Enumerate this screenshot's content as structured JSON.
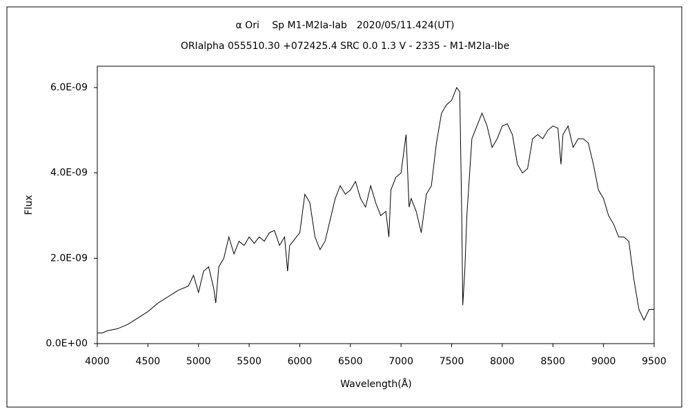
{
  "chart_data": {
    "type": "line",
    "title": "α Ori　 Sp M1-M2Ia-Iab　2020/05/11.424(UT)",
    "subtitle": "ORIalpha 055510.30 +072425.4 SRC 0.0 1.3 V - 2335 - M1-M2Ia-Ibe",
    "xlabel": "Wavelength(Å)",
    "ylabel": "Flux",
    "xlim": [
      4000,
      9500
    ],
    "xticks": [
      4000,
      4500,
      5000,
      5500,
      6000,
      6500,
      7000,
      7500,
      8000,
      8500,
      9000,
      9500
    ],
    "ylim": [
      0,
      6.5e-09
    ],
    "yticks": [
      {
        "value": 0,
        "label": "0.0E+00"
      },
      {
        "value": 2e-09,
        "label": "2.0E-09"
      },
      {
        "value": 4e-09,
        "label": "4.0E-09"
      },
      {
        "value": 6e-09,
        "label": "6.0E-09"
      }
    ],
    "grid": false,
    "color": "#000000",
    "x": [
      4000,
      4050,
      4100,
      4200,
      4300,
      4400,
      4500,
      4600,
      4700,
      4800,
      4900,
      4950,
      5000,
      5050,
      5100,
      5150,
      5170,
      5200,
      5250,
      5300,
      5350,
      5400,
      5450,
      5500,
      5550,
      5600,
      5650,
      5700,
      5750,
      5800,
      5850,
      5880,
      5900,
      6000,
      6050,
      6100,
      6150,
      6200,
      6250,
      6300,
      6350,
      6400,
      6450,
      6500,
      6550,
      6600,
      6650,
      6700,
      6750,
      6800,
      6850,
      6880,
      6900,
      6950,
      7000,
      7050,
      7080,
      7100,
      7150,
      7200,
      7250,
      7300,
      7350,
      7400,
      7450,
      7500,
      7550,
      7580,
      7600,
      7610,
      7630,
      7650,
      7700,
      7750,
      7800,
      7850,
      7900,
      7950,
      8000,
      8050,
      8100,
      8150,
      8200,
      8250,
      8300,
      8350,
      8400,
      8450,
      8500,
      8550,
      8580,
      8600,
      8650,
      8700,
      8750,
      8800,
      8850,
      8900,
      8950,
      9000,
      9050,
      9100,
      9150,
      9200,
      9250,
      9300,
      9350,
      9400,
      9450,
      9500
    ],
    "values": [
      2.5e-10,
      2.5e-10,
      3e-10,
      3.5e-10,
      4.5e-10,
      6e-10,
      7.5e-10,
      9.5e-10,
      1.1e-09,
      1.25e-09,
      1.35e-09,
      1.6e-09,
      1.2e-09,
      1.7e-09,
      1.8e-09,
      1.3e-09,
      9.5e-10,
      1.8e-09,
      2e-09,
      2.5e-09,
      2.1e-09,
      2.4e-09,
      2.3e-09,
      2.5e-09,
      2.35e-09,
      2.5e-09,
      2.4e-09,
      2.6e-09,
      2.65e-09,
      2.3e-09,
      2.5e-09,
      1.7e-09,
      2.3e-09,
      2.6e-09,
      3.5e-09,
      3.3e-09,
      2.5e-09,
      2.2e-09,
      2.4e-09,
      2.9e-09,
      3.4e-09,
      3.7e-09,
      3.5e-09,
      3.6e-09,
      3.8e-09,
      3.4e-09,
      3.2e-09,
      3.7e-09,
      3.3e-09,
      3e-09,
      3.1e-09,
      2.5e-09,
      3.6e-09,
      3.9e-09,
      4e-09,
      4.9e-09,
      3.2e-09,
      3.4e-09,
      3.1e-09,
      2.6e-09,
      3.5e-09,
      3.7e-09,
      4.7e-09,
      5.4e-09,
      5.6e-09,
      5.7e-09,
      6e-09,
      5.9e-09,
      3e-09,
      9e-10,
      1.7e-09,
      3e-09,
      4.8e-09,
      5.1e-09,
      5.4e-09,
      5.1e-09,
      4.6e-09,
      4.8e-09,
      5.1e-09,
      5.15e-09,
      4.9e-09,
      4.2e-09,
      4e-09,
      4.1e-09,
      4.8e-09,
      4.9e-09,
      4.8e-09,
      5e-09,
      5.1e-09,
      5.05e-09,
      4.2e-09,
      4.9e-09,
      5.1e-09,
      4.6e-09,
      4.8e-09,
      4.8e-09,
      4.7e-09,
      4.2e-09,
      3.6e-09,
      3.4e-09,
      3e-09,
      2.8e-09,
      2.5e-09,
      2.5e-09,
      2.4e-09,
      1.5e-09,
      8e-10,
      5.5e-10,
      8e-10,
      8e-10
    ]
  }
}
